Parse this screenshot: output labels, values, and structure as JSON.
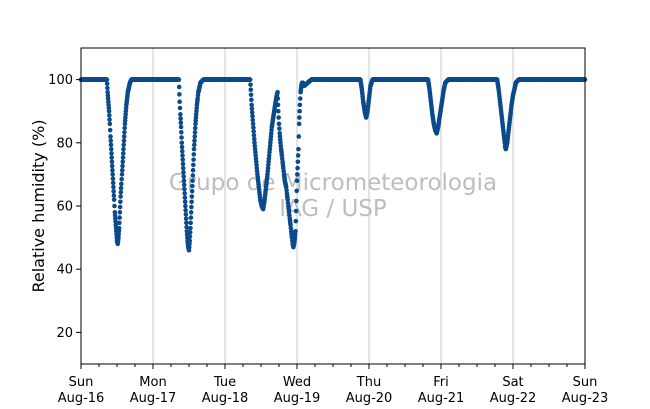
{
  "chart_data": {
    "type": "scatter",
    "title": "",
    "ylabel": "Relative humidity (%)",
    "xlabel": "",
    "ylim": [
      10,
      110
    ],
    "xlim": [
      0,
      7
    ],
    "yticks": [
      20,
      40,
      60,
      80,
      100
    ],
    "xticks": [
      {
        "x": 0,
        "line1": "Sun",
        "line2": "Aug-16"
      },
      {
        "x": 1,
        "line1": "Mon",
        "line2": "Aug-17"
      },
      {
        "x": 2,
        "line1": "Tue",
        "line2": "Aug-18"
      },
      {
        "x": 3,
        "line1": "Wed",
        "line2": "Aug-19"
      },
      {
        "x": 4,
        "line1": "Thu",
        "line2": "Aug-20"
      },
      {
        "x": 5,
        "line1": "Fri",
        "line2": "Aug-21"
      },
      {
        "x": 6,
        "line1": "Sat",
        "line2": "Aug-22"
      },
      {
        "x": 7,
        "line1": "Sun",
        "line2": "Aug-23"
      }
    ],
    "grid": "vertical",
    "watermark": [
      "Grupo de Micrometeorologia",
      "IAG / USP"
    ],
    "colors": {
      "series": "#0b4a8b",
      "grid": "#c8c8c8",
      "watermark": "#bdbdbd"
    },
    "series": [
      {
        "x_unit": "days since Sun Aug-16 00:00",
        "points": [
          [
            0.0,
            100
          ],
          [
            0.1,
            100
          ],
          [
            0.2,
            100
          ],
          [
            0.3,
            100
          ],
          [
            0.36,
            100
          ],
          [
            0.37,
            96
          ],
          [
            0.38,
            93
          ],
          [
            0.39,
            90
          ],
          [
            0.4,
            86
          ],
          [
            0.41,
            82
          ],
          [
            0.42,
            78
          ],
          [
            0.43,
            74
          ],
          [
            0.44,
            70
          ],
          [
            0.45,
            66
          ],
          [
            0.46,
            62
          ],
          [
            0.47,
            58
          ],
          [
            0.48,
            55
          ],
          [
            0.49,
            52
          ],
          [
            0.5,
            49
          ],
          [
            0.51,
            48
          ],
          [
            0.52,
            50
          ],
          [
            0.53,
            53
          ],
          [
            0.54,
            58
          ],
          [
            0.55,
            63
          ],
          [
            0.56,
            67
          ],
          [
            0.57,
            70
          ],
          [
            0.58,
            74
          ],
          [
            0.59,
            78
          ],
          [
            0.6,
            82
          ],
          [
            0.61,
            86
          ],
          [
            0.62,
            89
          ],
          [
            0.63,
            92
          ],
          [
            0.64,
            94
          ],
          [
            0.65,
            96
          ],
          [
            0.66,
            97
          ],
          [
            0.67,
            98
          ],
          [
            0.68,
            99
          ],
          [
            0.7,
            100
          ],
          [
            0.8,
            100
          ],
          [
            0.9,
            100
          ],
          [
            1.0,
            100
          ],
          [
            1.1,
            100
          ],
          [
            1.2,
            100
          ],
          [
            1.36,
            100
          ],
          [
            1.37,
            93
          ],
          [
            1.38,
            89
          ],
          [
            1.39,
            85
          ],
          [
            1.4,
            80
          ],
          [
            1.41,
            76
          ],
          [
            1.42,
            72
          ],
          [
            1.43,
            68
          ],
          [
            1.44,
            64
          ],
          [
            1.45,
            60
          ],
          [
            1.46,
            56
          ],
          [
            1.47,
            52
          ],
          [
            1.48,
            49
          ],
          [
            1.49,
            47
          ],
          [
            1.5,
            46
          ],
          [
            1.51,
            49
          ],
          [
            1.52,
            53
          ],
          [
            1.53,
            58
          ],
          [
            1.54,
            63
          ],
          [
            1.55,
            68
          ],
          [
            1.56,
            73
          ],
          [
            1.57,
            78
          ],
          [
            1.58,
            82
          ],
          [
            1.59,
            86
          ],
          [
            1.6,
            89
          ],
          [
            1.61,
            92
          ],
          [
            1.62,
            94
          ],
          [
            1.63,
            96
          ],
          [
            1.64,
            97
          ],
          [
            1.65,
            98
          ],
          [
            1.66,
            99
          ],
          [
            1.7,
            100
          ],
          [
            1.8,
            100
          ],
          [
            1.9,
            100
          ],
          [
            2.0,
            100
          ],
          [
            2.1,
            100
          ],
          [
            2.2,
            100
          ],
          [
            2.35,
            100
          ],
          [
            2.37,
            92
          ],
          [
            2.39,
            86
          ],
          [
            2.41,
            80
          ],
          [
            2.43,
            75
          ],
          [
            2.45,
            70
          ],
          [
            2.47,
            66
          ],
          [
            2.49,
            62
          ],
          [
            2.51,
            60
          ],
          [
            2.53,
            59
          ],
          [
            2.55,
            62
          ],
          [
            2.57,
            66
          ],
          [
            2.59,
            70
          ],
          [
            2.61,
            75
          ],
          [
            2.63,
            80
          ],
          [
            2.65,
            85
          ],
          [
            2.67,
            88
          ],
          [
            2.69,
            91
          ],
          [
            2.71,
            94
          ],
          [
            2.73,
            96
          ],
          [
            2.74,
            90
          ],
          [
            2.75,
            86
          ],
          [
            2.76,
            83
          ],
          [
            2.77,
            80
          ],
          [
            2.78,
            78
          ],
          [
            2.79,
            76
          ],
          [
            2.8,
            74
          ],
          [
            2.81,
            72
          ],
          [
            2.82,
            70
          ],
          [
            2.83,
            68
          ],
          [
            2.84,
            67
          ],
          [
            2.85,
            66
          ],
          [
            2.86,
            64
          ],
          [
            2.87,
            62
          ],
          [
            2.88,
            60
          ],
          [
            2.89,
            58
          ],
          [
            2.9,
            56
          ],
          [
            2.91,
            54
          ],
          [
            2.92,
            52
          ],
          [
            2.93,
            50
          ],
          [
            2.94,
            48
          ],
          [
            2.95,
            47
          ],
          [
            2.96,
            48
          ],
          [
            2.97,
            50
          ],
          [
            2.98,
            52
          ],
          [
            3.0,
            68
          ],
          [
            3.02,
            78
          ],
          [
            3.03,
            86
          ],
          [
            3.04,
            92
          ],
          [
            3.05,
            96
          ],
          [
            3.06,
            98
          ],
          [
            3.07,
            99
          ],
          [
            3.08,
            99
          ],
          [
            3.1,
            98
          ],
          [
            3.15,
            99
          ],
          [
            3.2,
            100
          ],
          [
            3.3,
            100
          ],
          [
            3.4,
            100
          ],
          [
            3.5,
            100
          ],
          [
            3.6,
            100
          ],
          [
            3.7,
            100
          ],
          [
            3.8,
            100
          ],
          [
            3.88,
            100
          ],
          [
            3.9,
            97
          ],
          [
            3.92,
            93
          ],
          [
            3.94,
            90
          ],
          [
            3.96,
            88
          ],
          [
            3.98,
            90
          ],
          [
            4.0,
            94
          ],
          [
            4.02,
            98
          ],
          [
            4.05,
            100
          ],
          [
            4.15,
            100
          ],
          [
            4.25,
            100
          ],
          [
            4.35,
            100
          ],
          [
            4.45,
            100
          ],
          [
            4.55,
            100
          ],
          [
            4.65,
            100
          ],
          [
            4.75,
            100
          ],
          [
            4.82,
            100
          ],
          [
            4.84,
            97
          ],
          [
            4.86,
            93
          ],
          [
            4.88,
            89
          ],
          [
            4.9,
            86
          ],
          [
            4.92,
            84
          ],
          [
            4.94,
            83
          ],
          [
            4.96,
            85
          ],
          [
            4.98,
            88
          ],
          [
            5.0,
            91
          ],
          [
            5.02,
            94
          ],
          [
            5.04,
            97
          ],
          [
            5.06,
            99
          ],
          [
            5.1,
            100
          ],
          [
            5.2,
            100
          ],
          [
            5.3,
            100
          ],
          [
            5.4,
            100
          ],
          [
            5.5,
            100
          ],
          [
            5.6,
            100
          ],
          [
            5.7,
            100
          ],
          [
            5.78,
            100
          ],
          [
            5.8,
            97
          ],
          [
            5.82,
            93
          ],
          [
            5.84,
            89
          ],
          [
            5.86,
            85
          ],
          [
            5.88,
            81
          ],
          [
            5.89,
            79
          ],
          [
            5.9,
            78
          ],
          [
            5.92,
            80
          ],
          [
            5.94,
            84
          ],
          [
            5.96,
            88
          ],
          [
            5.98,
            92
          ],
          [
            6.0,
            95
          ],
          [
            6.02,
            97
          ],
          [
            6.04,
            99
          ],
          [
            6.08,
            100
          ],
          [
            6.2,
            100
          ],
          [
            6.3,
            100
          ],
          [
            6.4,
            100
          ],
          [
            6.5,
            100
          ],
          [
            6.6,
            100
          ],
          [
            6.7,
            100
          ],
          [
            6.8,
            100
          ],
          [
            6.9,
            100
          ],
          [
            7.0,
            100
          ]
        ]
      }
    ]
  }
}
